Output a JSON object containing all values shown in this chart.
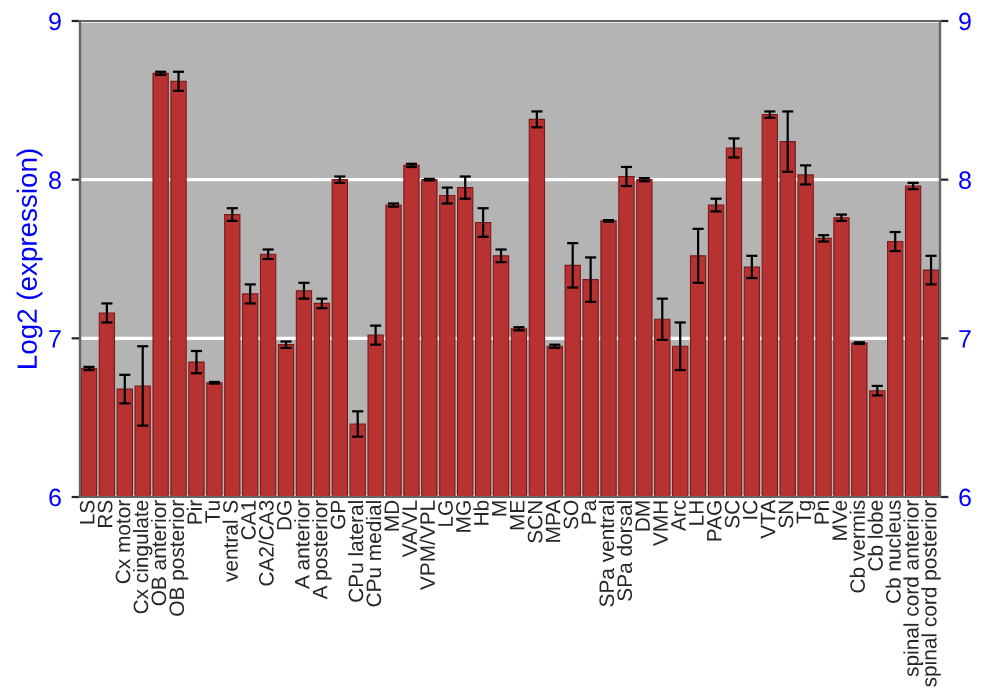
{
  "chart_data": {
    "type": "bar",
    "ylabel": "Log2 (expression)",
    "categories": [
      "LS",
      "RS",
      "Cx motor",
      "Cx cingulate",
      "OB anterior",
      "OB posterior",
      "Pir",
      "Tu",
      "ventral S",
      "CA1",
      "CA2/CA3",
      "DG",
      "A anterior",
      "A posterior",
      "GP",
      "CPu lateral",
      "CPu medial",
      "MD",
      "VA/VL",
      "VPM/VPL",
      "LG",
      "MG",
      "Hb",
      "M",
      "ME",
      "SCN",
      "MPA",
      "SO",
      "Pa",
      "SPa ventral",
      "SPa dorsal",
      "DM",
      "VMH",
      "Arc",
      "LH",
      "PAG",
      "SC",
      "IC",
      "VTA",
      "SN",
      "Tg",
      "Pn",
      "MVe",
      "Cb vermis",
      "Cb lobe",
      "Cb nucleus",
      "spinal cord anterior",
      "spinal cord posterior"
    ],
    "values": [
      6.81,
      7.16,
      6.68,
      6.7,
      8.67,
      8.62,
      6.85,
      6.72,
      7.78,
      7.28,
      7.53,
      6.96,
      7.3,
      7.22,
      8.0,
      6.46,
      7.02,
      7.84,
      8.09,
      8.0,
      7.9,
      7.95,
      7.73,
      7.52,
      7.06,
      8.38,
      6.95,
      7.46,
      7.37,
      7.74,
      8.02,
      8.0,
      7.12,
      6.95,
      7.52,
      7.84,
      8.2,
      7.45,
      8.41,
      8.24,
      8.03,
      7.63,
      7.76,
      6.97,
      6.67,
      7.61,
      7.96,
      7.43
    ],
    "errors": [
      0.01,
      0.06,
      0.09,
      0.25,
      0.01,
      0.06,
      0.07,
      0.005,
      0.04,
      0.06,
      0.03,
      0.02,
      0.05,
      0.03,
      0.02,
      0.08,
      0.06,
      0.01,
      0.01,
      0.005,
      0.05,
      0.07,
      0.09,
      0.04,
      0.01,
      0.05,
      0.01,
      0.14,
      0.14,
      0.005,
      0.06,
      0.01,
      0.13,
      0.15,
      0.17,
      0.04,
      0.06,
      0.07,
      0.02,
      0.19,
      0.06,
      0.02,
      0.02,
      0.005,
      0.03,
      0.06,
      0.02,
      0.09
    ],
    "color": "#b83232",
    "ylim": [
      6,
      9
    ],
    "yticks": [
      6,
      7,
      8,
      9
    ],
    "y2lim": [
      6,
      9
    ],
    "y2ticks": [
      6,
      7,
      8,
      9
    ],
    "grid": "y"
  }
}
